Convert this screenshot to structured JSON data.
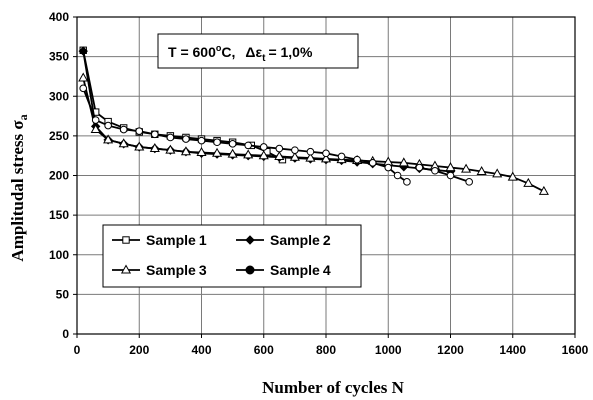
{
  "chart_data": {
    "type": "line",
    "xlabel": "Number of cycles N",
    "ylabel_main": "Amplitudal stress σ",
    "ylabel_sub": "a",
    "xlim": [
      0,
      1600
    ],
    "ylim": [
      0,
      400
    ],
    "x_ticks": [
      0,
      200,
      400,
      600,
      800,
      1000,
      1200,
      1400,
      1600
    ],
    "y_ticks": [
      0,
      50,
      100,
      150,
      200,
      250,
      300,
      350,
      400
    ],
    "grid": true,
    "legend_position": "lower-left",
    "annotation": {
      "prefix": "T = 600",
      "sup": "o",
      "unit": "C,",
      "delta": "Δε",
      "delta_sub": "t",
      "suffix": "= 1,0%"
    },
    "series": [
      {
        "name": "Sample 1",
        "legend_main": "Sample",
        "legend_num": "1",
        "marker": "square-open",
        "x": [
          20,
          60,
          100,
          150,
          200,
          250,
          300,
          350,
          400,
          450,
          500,
          560,
          610,
          660
        ],
        "y": [
          358,
          280,
          268,
          260,
          255,
          252,
          250,
          248,
          246,
          244,
          242,
          238,
          230,
          220
        ]
      },
      {
        "name": "Sample 2",
        "legend_main": "Sample",
        "legend_num": "2",
        "marker": "diamond-filled",
        "x": [
          20,
          60,
          100,
          150,
          200,
          250,
          300,
          350,
          400,
          450,
          500,
          550,
          600,
          650,
          700,
          750,
          800,
          850,
          900,
          950,
          1000,
          1050,
          1100,
          1150,
          1200
        ],
        "y": [
          357,
          262,
          245,
          240,
          236,
          234,
          232,
          230,
          228,
          227,
          226,
          225,
          224,
          223,
          222,
          221,
          220,
          219,
          217,
          215,
          213,
          211,
          209,
          207,
          205
        ]
      },
      {
        "name": "Sample 3",
        "legend_main": "Sample",
        "legend_num": "3",
        "marker": "triangle-open",
        "x": [
          20,
          60,
          100,
          150,
          200,
          250,
          300,
          350,
          400,
          450,
          500,
          550,
          600,
          650,
          700,
          750,
          800,
          850,
          900,
          950,
          1000,
          1050,
          1100,
          1150,
          1200,
          1250,
          1300,
          1350,
          1400,
          1450,
          1500
        ],
        "y": [
          323,
          258,
          245,
          240,
          236,
          234,
          232,
          230,
          229,
          228,
          227,
          226,
          225,
          224,
          223,
          222,
          221,
          220,
          219,
          218,
          217,
          216,
          214,
          212,
          210,
          208,
          205,
          202,
          198,
          190,
          180
        ]
      },
      {
        "name": "Sample 4",
        "legend_main": "Sample",
        "legend_num": "4",
        "marker": "circle-open",
        "x": [
          20,
          60,
          100,
          150,
          200,
          250,
          300,
          350,
          400,
          450,
          500,
          550,
          600,
          650,
          700,
          750,
          800,
          850,
          900,
          950,
          1000,
          1030,
          1060
        ],
        "y": [
          310,
          270,
          263,
          258,
          256,
          252,
          248,
          246,
          244,
          242,
          240,
          238,
          236,
          234,
          232,
          230,
          228,
          224,
          220,
          216,
          210,
          200,
          192
        ]
      },
      {
        "name": "",
        "marker": "circle-open",
        "x": [
          1100,
          1150,
          1200,
          1260
        ],
        "y": [
          210,
          206,
          200,
          192
        ]
      }
    ]
  }
}
